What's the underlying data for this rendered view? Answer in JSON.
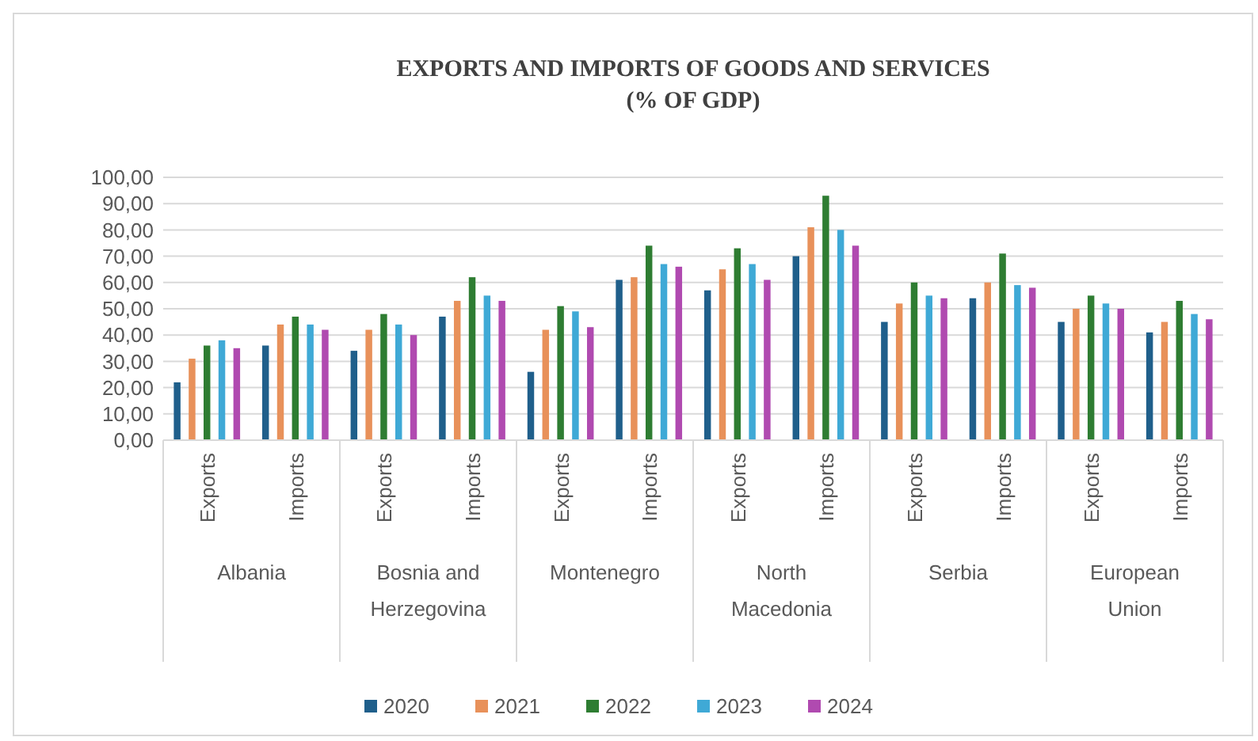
{
  "chart_data": {
    "type": "bar",
    "title": "EXPORTS AND IMPORTS OF GOODS AND SERVICES",
    "subtitle": "(% OF GDP)",
    "categories": [
      "Exports",
      "Imports",
      "Exports",
      "Imports",
      "Exports",
      "Imports",
      "Exports",
      "Imports",
      "Exports",
      "Imports",
      "Exports",
      "Imports"
    ],
    "annotations": [
      "Albania",
      "Bosnia and Herzegovina",
      "Montenegro",
      "North Macedonia",
      "Serbia",
      "European Union"
    ],
    "series": [
      {
        "name": "2020",
        "color": "#1f5f8b",
        "values": [
          22,
          36,
          34,
          47,
          26,
          61,
          57,
          70,
          45,
          54,
          45,
          41
        ]
      },
      {
        "name": "2021",
        "color": "#e8915a",
        "values": [
          31,
          44,
          42,
          53,
          42,
          62,
          65,
          81,
          52,
          60,
          50,
          45
        ]
      },
      {
        "name": "2022",
        "color": "#2e7d32",
        "values": [
          36,
          47,
          48,
          62,
          51,
          74,
          73,
          93,
          60,
          71,
          55,
          53
        ]
      },
      {
        "name": "2023",
        "color": "#3fa9d6",
        "values": [
          38,
          44,
          44,
          55,
          49,
          67,
          67,
          80,
          55,
          59,
          52,
          48
        ]
      },
      {
        "name": "2024",
        "color": "#b04ab0",
        "values": [
          35,
          42,
          40,
          53,
          43,
          66,
          61,
          74,
          54,
          58,
          50,
          46
        ]
      }
    ],
    "ylim": [
      0,
      100
    ],
    "yticks": [
      {
        "value": 0,
        "label": "0,00"
      },
      {
        "value": 10,
        "label": "10,00"
      },
      {
        "value": 20,
        "label": "20,00"
      },
      {
        "value": 30,
        "label": "30,00"
      },
      {
        "value": 40,
        "label": "40,00"
      },
      {
        "value": 50,
        "label": "50,00"
      },
      {
        "value": 60,
        "label": "60,00"
      },
      {
        "value": 70,
        "label": "70,00"
      },
      {
        "value": 80,
        "label": "80,00"
      },
      {
        "value": 90,
        "label": "90,00"
      },
      {
        "value": 100,
        "label": "100,00"
      }
    ],
    "grid": "y",
    "legend": "bottom"
  }
}
